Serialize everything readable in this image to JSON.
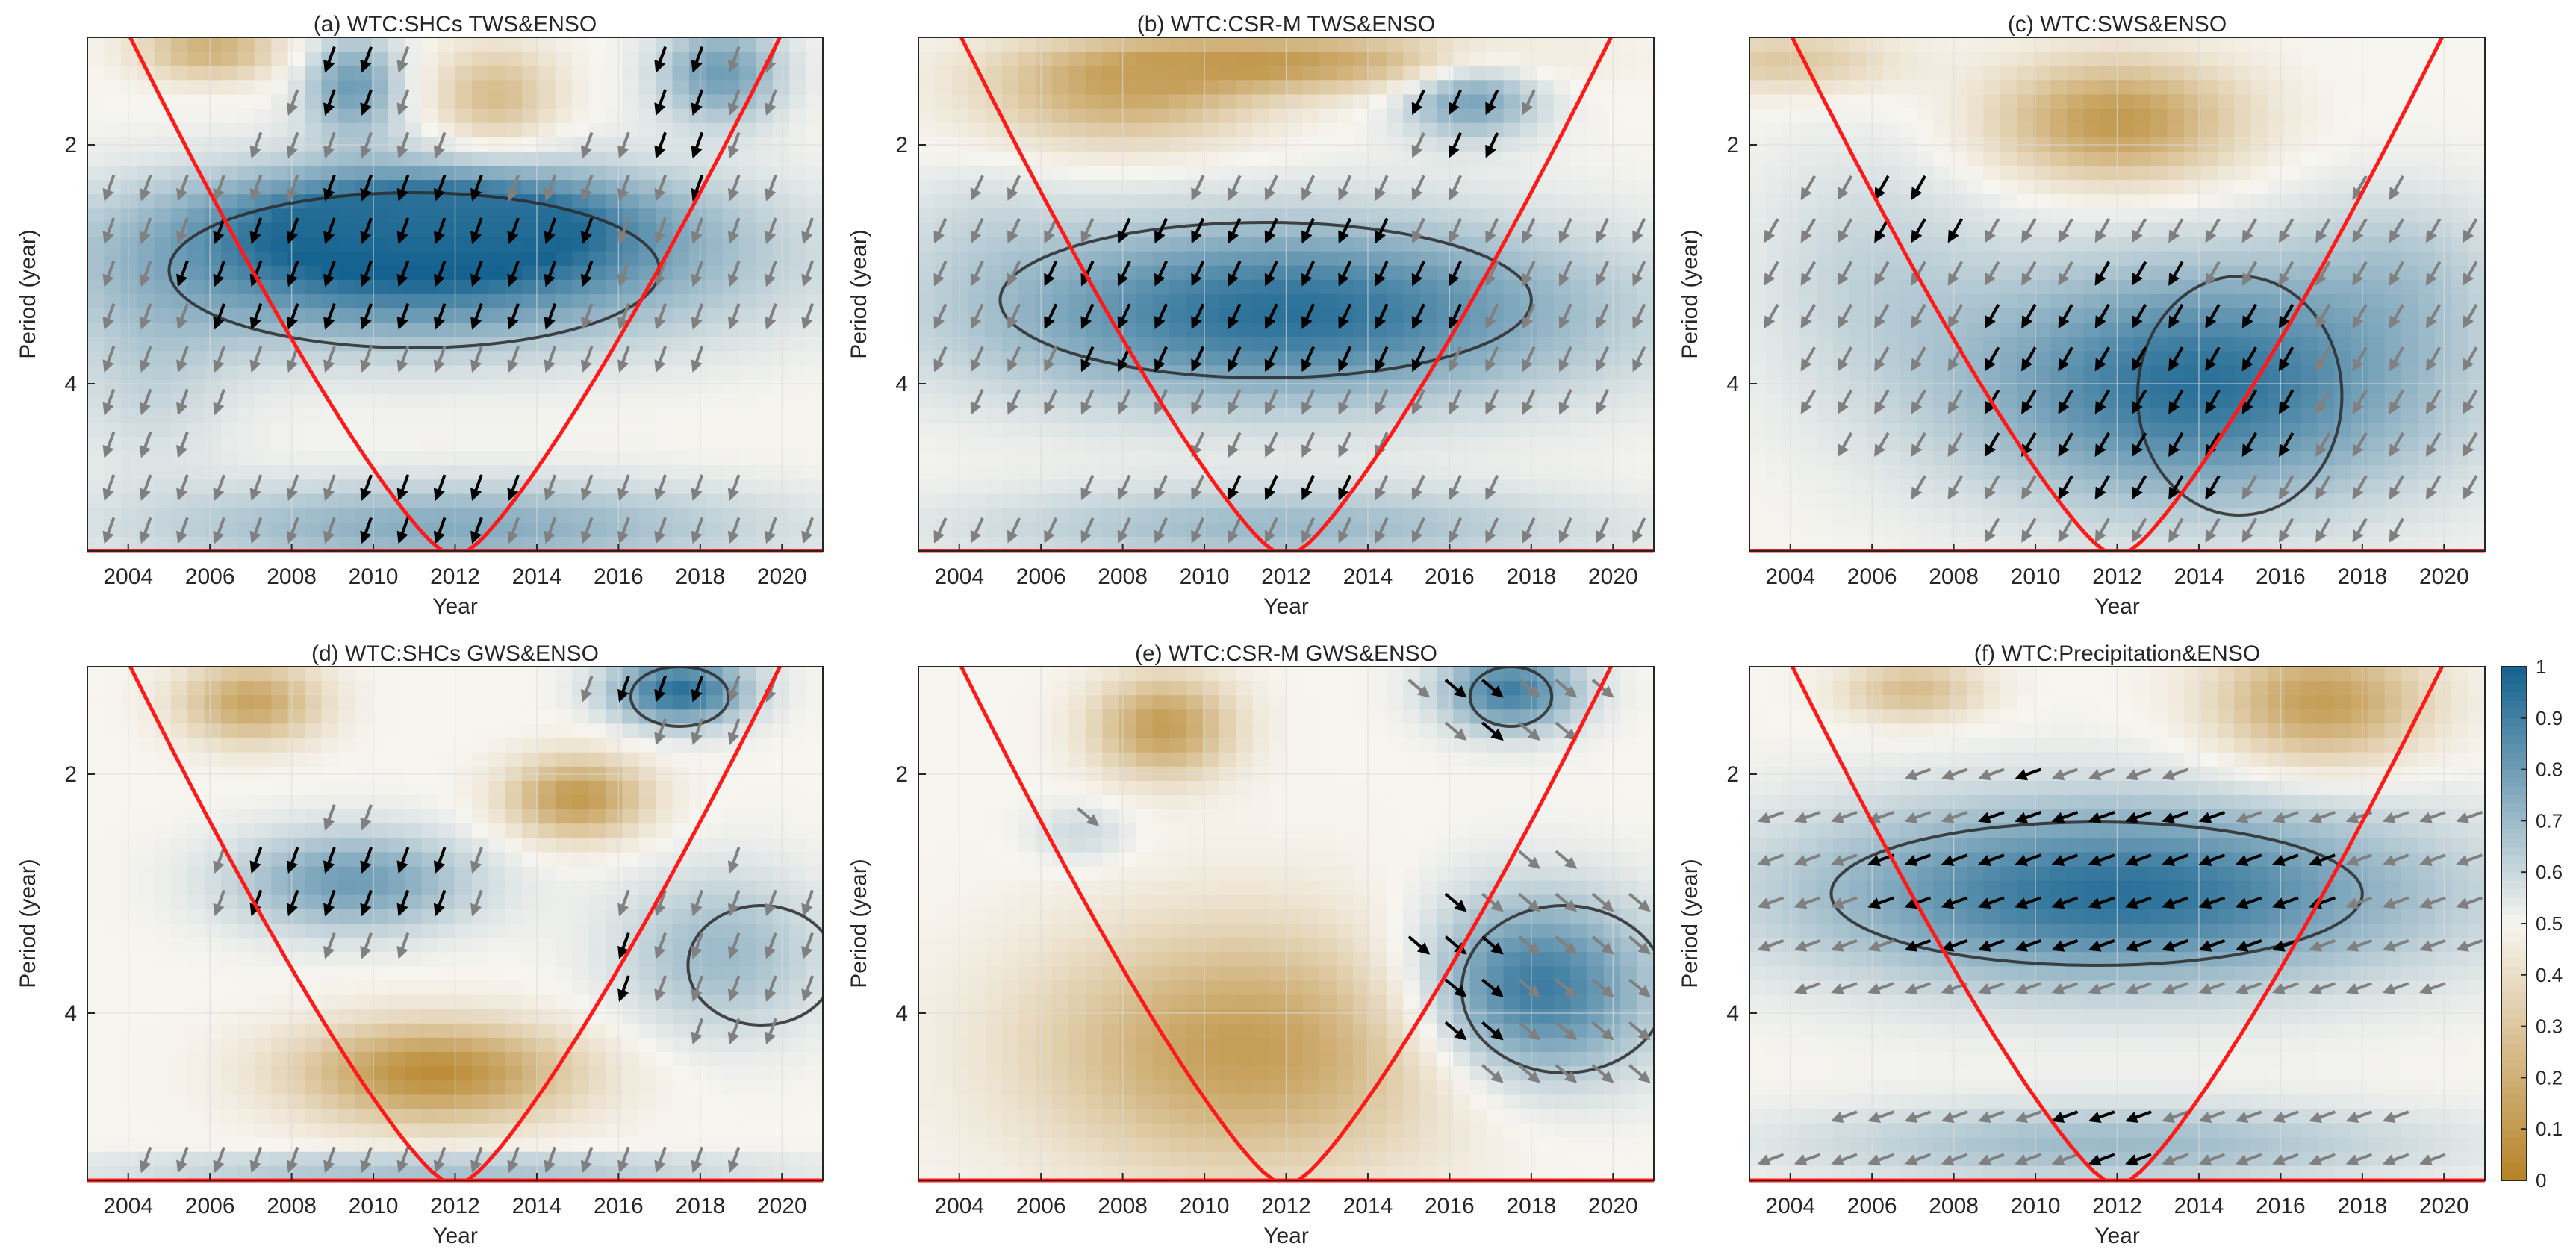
{
  "figure": {
    "colorbar": {
      "min": 0,
      "max": 1,
      "ticks": [
        "0",
        "0.1",
        "0.2",
        "0.3",
        "0.4",
        "0.5",
        "0.6",
        "0.7",
        "0.8",
        "0.9",
        "1"
      ],
      "colors": {
        "low": "#b58226",
        "mid": "#f7f5f0",
        "high": "#14628f"
      }
    },
    "colors": {
      "coi": "#ff1a1a",
      "arrow_significant": "#000000",
      "arrow_other": "#808080",
      "contour": "#2a2a2a"
    }
  },
  "chart_data": [
    {
      "type": "heatmap",
      "title": "(a) WTC:SHCs TWS&ENSO",
      "xlabel": "Year",
      "ylabel": "Period (year)",
      "xlim": [
        2003,
        2021
      ],
      "ylim": [
        1.1,
        5.4
      ],
      "xticks": [
        "2004",
        "2006",
        "2008",
        "2010",
        "2012",
        "2014",
        "2016",
        "2018",
        "2020"
      ],
      "yticks": [
        "2",
        "4"
      ],
      "blobs": [
        {
          "x": 2011.0,
          "y": 3.0,
          "rx": 9.0,
          "ry": 0.8,
          "v": 0.95
        },
        {
          "x": 2011.5,
          "y": 2.6,
          "rx": 6.0,
          "ry": 0.5,
          "v": 0.85
        },
        {
          "x": 2004.5,
          "y": 4.0,
          "rx": 2.5,
          "ry": 0.9,
          "v": 0.6
        },
        {
          "x": 2012.0,
          "y": 5.2,
          "rx": 9.0,
          "ry": 0.45,
          "v": 0.75
        },
        {
          "x": 2009.5,
          "y": 1.5,
          "rx": 1.4,
          "ry": 0.5,
          "v": 0.8
        },
        {
          "x": 2018.5,
          "y": 1.4,
          "rx": 1.8,
          "ry": 0.5,
          "v": 0.8
        },
        {
          "x": 2006.0,
          "y": 1.2,
          "rx": 2.0,
          "ry": 0.3,
          "v": 0.2
        },
        {
          "x": 2013.0,
          "y": 1.6,
          "rx": 1.8,
          "ry": 0.5,
          "v": 0.25
        }
      ],
      "sig_regions": [
        {
          "x": 2010.5,
          "y": 3.0,
          "rx": 5.5,
          "ry": 0.7
        },
        {
          "x": 2009.3,
          "y": 1.5,
          "rx": 1.0,
          "ry": 0.45
        },
        {
          "x": 2017.7,
          "y": 1.7,
          "rx": 1.1,
          "ry": 0.75
        },
        {
          "x": 2011.5,
          "y": 4.9,
          "rx": 2.5,
          "ry": 0.45
        }
      ],
      "arrow_dir_deg": 250,
      "contours": [
        {
          "x": 2011.0,
          "y": 3.05,
          "rx": 6.0,
          "ry": 0.65
        }
      ]
    },
    {
      "type": "heatmap",
      "title": "(b) WTC:CSR-M TWS&ENSO",
      "xlabel": "Year",
      "ylabel": "Period (year)",
      "xlim": [
        2003,
        2021
      ],
      "ylim": [
        1.1,
        5.4
      ],
      "xticks": [
        "2004",
        "2006",
        "2008",
        "2010",
        "2012",
        "2014",
        "2016",
        "2018",
        "2020"
      ],
      "yticks": [
        "2",
        "4"
      ],
      "blobs": [
        {
          "x": 2012.0,
          "y": 3.4,
          "rx": 9.0,
          "ry": 0.9,
          "v": 0.95
        },
        {
          "x": 2004.5,
          "y": 2.6,
          "rx": 2.5,
          "ry": 0.6,
          "v": 0.55
        },
        {
          "x": 2012.0,
          "y": 5.2,
          "rx": 9.0,
          "ry": 0.4,
          "v": 0.7
        },
        {
          "x": 2016.5,
          "y": 1.6,
          "rx": 2.0,
          "ry": 0.4,
          "v": 0.8
        },
        {
          "x": 2008.0,
          "y": 1.6,
          "rx": 4.0,
          "ry": 0.5,
          "v": 0.2
        },
        {
          "x": 2012.0,
          "y": 1.3,
          "rx": 6.0,
          "ry": 0.3,
          "v": 0.15
        }
      ],
      "sig_regions": [
        {
          "x": 2011.2,
          "y": 3.3,
          "rx": 5.5,
          "ry": 0.75
        },
        {
          "x": 2016.3,
          "y": 1.7,
          "rx": 1.4,
          "ry": 0.35
        },
        {
          "x": 2012.0,
          "y": 4.9,
          "rx": 2.0,
          "ry": 0.3
        }
      ],
      "arrow_dir_deg": 245,
      "contours": [
        {
          "x": 2011.5,
          "y": 3.3,
          "rx": 6.5,
          "ry": 0.65
        }
      ]
    },
    {
      "type": "heatmap",
      "title": "(c) WTC:SWS&ENSO",
      "xlabel": "Year",
      "ylabel": "Period (year)",
      "xlim": [
        2003,
        2021
      ],
      "ylim": [
        1.1,
        5.4
      ],
      "xticks": [
        "2004",
        "2006",
        "2008",
        "2010",
        "2012",
        "2014",
        "2016",
        "2018",
        "2020"
      ],
      "yticks": [
        "2",
        "4"
      ],
      "blobs": [
        {
          "x": 2014.0,
          "y": 4.0,
          "rx": 7.0,
          "ry": 1.2,
          "v": 0.95
        },
        {
          "x": 2006.0,
          "y": 3.0,
          "rx": 3.5,
          "ry": 1.2,
          "v": 0.6
        },
        {
          "x": 2019.0,
          "y": 3.0,
          "rx": 3.0,
          "ry": 0.8,
          "v": 0.6
        },
        {
          "x": 2012.0,
          "y": 1.8,
          "rx": 3.5,
          "ry": 0.6,
          "v": 0.1
        },
        {
          "x": 2004.0,
          "y": 1.3,
          "rx": 3.0,
          "ry": 0.3,
          "v": 0.3
        }
      ],
      "sig_regions": [
        {
          "x": 2012.5,
          "y": 4.0,
          "rx": 4.5,
          "ry": 1.0
        },
        {
          "x": 2007.0,
          "y": 2.4,
          "rx": 1.5,
          "ry": 0.5
        }
      ],
      "arrow_dir_deg": 240,
      "contours": [
        {
          "x": 2015.0,
          "y": 4.1,
          "rx": 2.5,
          "ry": 1.0
        }
      ]
    },
    {
      "type": "heatmap",
      "title": "(d) WTC:SHCs GWS&ENSO",
      "xlabel": "Year",
      "ylabel": "Period (year)",
      "xlim": [
        2003,
        2021
      ],
      "ylim": [
        1.1,
        5.4
      ],
      "xticks": [
        "2004",
        "2006",
        "2008",
        "2010",
        "2012",
        "2014",
        "2016",
        "2018",
        "2020"
      ],
      "yticks": [
        "2",
        "4"
      ],
      "blobs": [
        {
          "x": 2009.5,
          "y": 2.9,
          "rx": 3.5,
          "ry": 0.5,
          "v": 0.8
        },
        {
          "x": 2017.5,
          "y": 1.3,
          "rx": 2.0,
          "ry": 0.35,
          "v": 0.95
        },
        {
          "x": 2018.5,
          "y": 3.5,
          "rx": 3.0,
          "ry": 0.8,
          "v": 0.7
        },
        {
          "x": 2011.5,
          "y": 5.3,
          "rx": 9.0,
          "ry": 0.15,
          "v": 0.7
        },
        {
          "x": 2011.5,
          "y": 4.5,
          "rx": 4.0,
          "ry": 0.5,
          "v": 0.05
        },
        {
          "x": 2007.0,
          "y": 1.4,
          "rx": 2.0,
          "ry": 0.4,
          "v": 0.15
        },
        {
          "x": 2015.0,
          "y": 2.2,
          "rx": 2.0,
          "ry": 0.4,
          "v": 0.1
        }
      ],
      "sig_regions": [
        {
          "x": 2009.5,
          "y": 2.9,
          "rx": 3.0,
          "ry": 0.4
        },
        {
          "x": 2017.3,
          "y": 1.3,
          "rx": 1.3,
          "ry": 0.3
        },
        {
          "x": 2016.0,
          "y": 3.7,
          "rx": 0.8,
          "ry": 0.5
        }
      ],
      "arrow_dir_deg": 250,
      "contours": [
        {
          "x": 2017.5,
          "y": 1.35,
          "rx": 1.2,
          "ry": 0.25
        },
        {
          "x": 2019.5,
          "y": 3.6,
          "rx": 1.8,
          "ry": 0.5
        }
      ]
    },
    {
      "type": "heatmap",
      "title": "(e) WTC:CSR-M GWS&ENSO",
      "xlabel": "Year",
      "ylabel": "Period (year)",
      "xlim": [
        2003,
        2021
      ],
      "ylim": [
        1.1,
        5.4
      ],
      "xticks": [
        "2004",
        "2006",
        "2008",
        "2010",
        "2012",
        "2014",
        "2016",
        "2018",
        "2020"
      ],
      "yticks": [
        "2",
        "4"
      ],
      "blobs": [
        {
          "x": 2018.0,
          "y": 3.8,
          "rx": 3.5,
          "ry": 0.9,
          "v": 0.95
        },
        {
          "x": 2017.5,
          "y": 1.3,
          "rx": 2.0,
          "ry": 0.4,
          "v": 0.9
        },
        {
          "x": 2007.0,
          "y": 2.5,
          "rx": 1.5,
          "ry": 0.3,
          "v": 0.6
        },
        {
          "x": 2011.0,
          "y": 4.3,
          "rx": 6.0,
          "ry": 1.2,
          "v": 0.12
        },
        {
          "x": 2009.0,
          "y": 1.6,
          "rx": 2.0,
          "ry": 0.5,
          "v": 0.12
        }
      ],
      "sig_regions": [
        {
          "x": 2016.3,
          "y": 3.8,
          "rx": 1.5,
          "ry": 0.8
        },
        {
          "x": 2016.8,
          "y": 1.4,
          "rx": 1.0,
          "ry": 0.3
        },
        {
          "x": 2007.0,
          "y": 2.6,
          "rx": 0.9,
          "ry": 0.15
        }
      ],
      "arrow_dir_deg": 320,
      "contours": [
        {
          "x": 2018.8,
          "y": 3.8,
          "rx": 2.5,
          "ry": 0.7
        },
        {
          "x": 2017.5,
          "y": 1.35,
          "rx": 1.0,
          "ry": 0.25
        }
      ]
    },
    {
      "type": "heatmap",
      "title": "(f) WTC:Precipitation&ENSO",
      "xlabel": "Year",
      "ylabel": "Period (year)",
      "xlim": [
        2003,
        2021
      ],
      "ylim": [
        1.1,
        5.4
      ],
      "xticks": [
        "2004",
        "2006",
        "2008",
        "2010",
        "2012",
        "2014",
        "2016",
        "2018",
        "2020"
      ],
      "yticks": [
        "2",
        "4"
      ],
      "blobs": [
        {
          "x": 2012.0,
          "y": 3.0,
          "rx": 9.0,
          "ry": 0.9,
          "v": 0.95
        },
        {
          "x": 2012.0,
          "y": 5.1,
          "rx": 9.0,
          "ry": 0.4,
          "v": 0.7
        },
        {
          "x": 2010.0,
          "y": 1.5,
          "rx": 1.5,
          "ry": 0.6,
          "v": 0.5
        },
        {
          "x": 2017.0,
          "y": 1.4,
          "rx": 3.0,
          "ry": 0.6,
          "v": 0.12
        },
        {
          "x": 2007.0,
          "y": 1.3,
          "rx": 2.0,
          "ry": 0.3,
          "v": 0.25
        }
      ],
      "sig_regions": [
        {
          "x": 2011.5,
          "y": 3.0,
          "rx": 6.0,
          "ry": 0.75
        },
        {
          "x": 2010.0,
          "y": 1.6,
          "rx": 1.2,
          "ry": 0.45
        },
        {
          "x": 2012.0,
          "y": 5.0,
          "rx": 1.5,
          "ry": 0.4
        }
      ],
      "arrow_dir_deg": 200,
      "contours": [
        {
          "x": 2011.5,
          "y": 3.0,
          "rx": 6.5,
          "ry": 0.6
        }
      ]
    }
  ]
}
